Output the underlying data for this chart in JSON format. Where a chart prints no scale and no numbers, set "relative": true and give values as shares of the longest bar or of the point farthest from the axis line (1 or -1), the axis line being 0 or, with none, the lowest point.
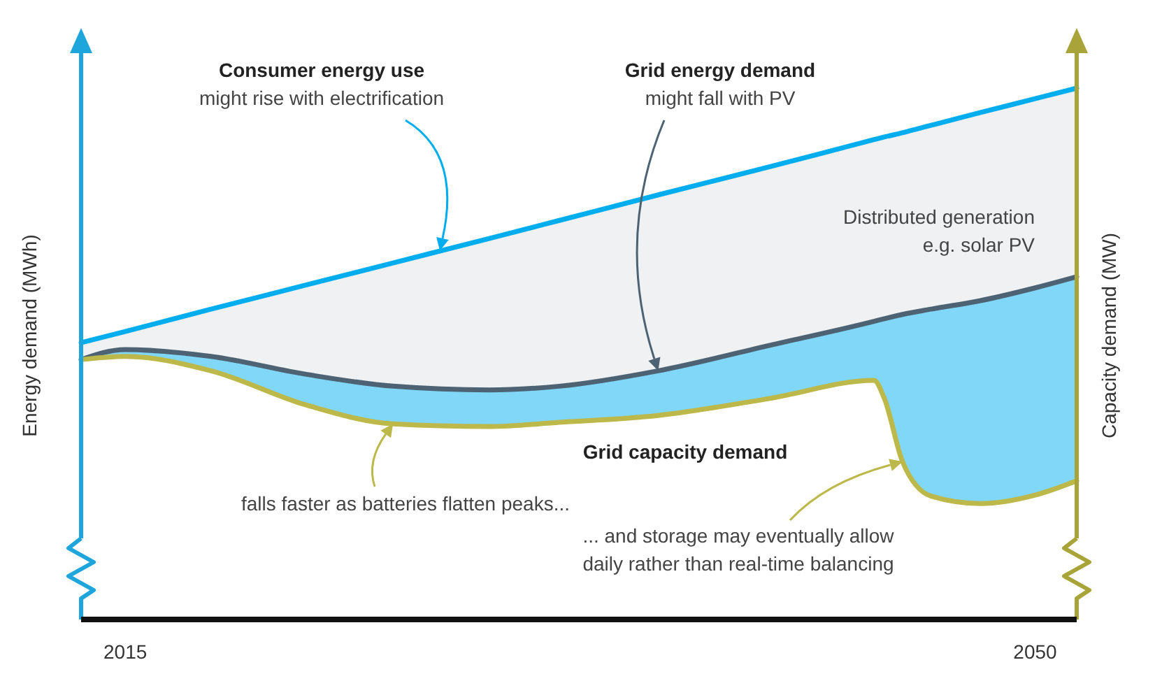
{
  "chart_data": {
    "type": "line",
    "relative": true,
    "ylabel": "Energy demand (MWh)",
    "y2label": "Capacity demand (MW)",
    "xlim": [
      2013.3,
      2051.6
    ],
    "xticks": [
      2015,
      2050
    ],
    "x": [
      2013.3,
      2015,
      2018.3,
      2022,
      2025.3,
      2029,
      2031.7,
      2035.5,
      2039.8,
      2043.8,
      2044.2,
      2044.9,
      2046,
      2047.9,
      2050,
      2051.6
    ],
    "series": [
      {
        "color": "#00aeef",
        "values": [
          0.521,
          0.542,
          0.584,
          0.63,
          0.671,
          0.717,
          0.751,
          0.799,
          0.852,
          0.903,
          0.908,
          0.916,
          0.93,
          0.954,
          0.98,
          1.0
        ],
        "lower": [
          0.489,
          0.495,
          0.468,
          0.403,
          0.368,
          0.363,
          0.371,
          0.384,
          0.416,
          0.45,
          0.416,
          0.297,
          0.232,
          0.218,
          0.234,
          0.261
        ],
        "upper": [
          0.489,
          0.508,
          0.495,
          0.461,
          0.439,
          0.432,
          0.439,
          0.468,
          0.516,
          0.561,
          0.566,
          0.574,
          0.584,
          0.6,
          0.624,
          0.645
        ]
      },
      {
        "color": "#4d6373",
        "values": [
          0.489,
          0.508,
          0.495,
          0.461,
          0.439,
          0.432,
          0.439,
          0.468,
          0.516,
          0.561,
          0.566,
          0.574,
          0.584,
          0.6,
          0.624,
          0.645
        ],
        "lower": [
          0.489,
          0.508,
          0.495,
          0.461,
          0.439,
          0.432,
          0.439,
          0.468,
          0.516,
          0.561,
          0.566,
          0.574,
          0.584,
          0.6,
          0.624,
          0.645
        ],
        "upper": [
          0.521,
          0.542,
          0.584,
          0.63,
          0.671,
          0.717,
          0.751,
          0.799,
          0.852,
          0.903,
          0.908,
          0.916,
          0.93,
          0.954,
          0.98,
          1.0
        ]
      },
      {
        "color": "#bdb84a",
        "values": [
          0.489,
          0.495,
          0.468,
          0.403,
          0.368,
          0.363,
          0.371,
          0.384,
          0.416,
          0.45,
          0.416,
          0.297,
          0.232,
          0.218,
          0.234,
          0.261
        ]
      }
    ],
    "annotations": [
      {
        "text": "Consumer energy use\nmight rise with electrification",
        "x": 2027.1,
        "y": 0.694
      },
      {
        "text": "Grid energy demand\nmight fall with PV",
        "x": 2035.5,
        "y": 0.468
      },
      "Distributed generation\ne.g. solar PV",
      "Grid capacity demand",
      "falls faster as batteries flatten peaks...",
      "... and storage may eventually allow\ndaily rather than real-time balancing"
    ]
  }
}
